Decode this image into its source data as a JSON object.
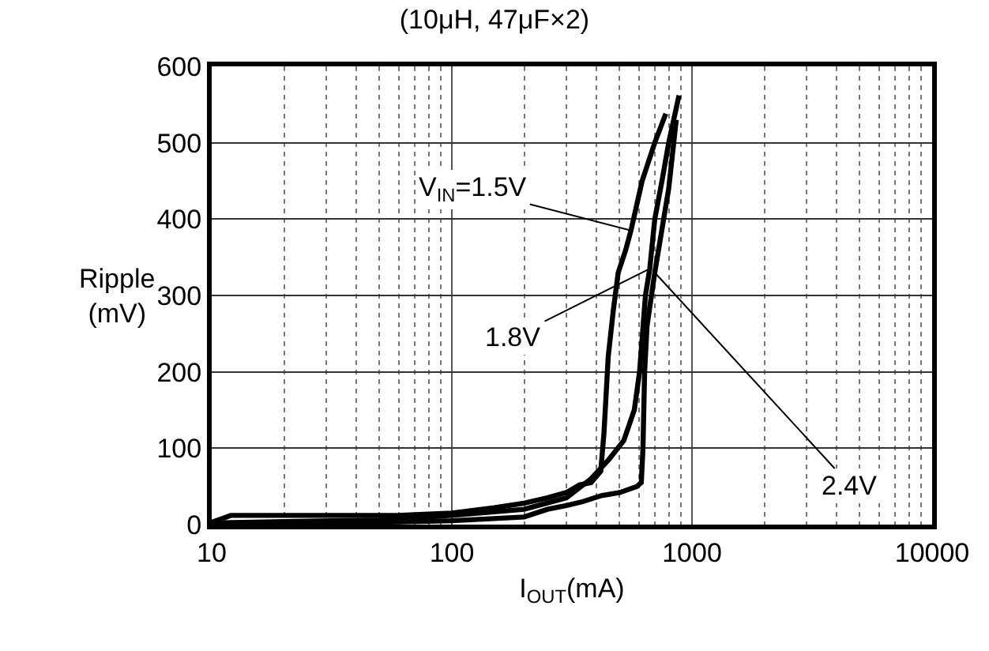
{
  "chart_data": {
    "type": "line",
    "title": "(10μH, 47μF×2)",
    "xlabel": "I$_{OUT}$(mA)",
    "ylabel": "Ripple\n(mV)",
    "log": "x",
    "xlim": [
      10,
      10000
    ],
    "xticks": [
      10,
      100,
      1000,
      10000
    ],
    "ylim": [
      0,
      600
    ],
    "yticks": [
      0,
      100,
      200,
      300,
      400,
      500,
      600
    ],
    "grid": true,
    "marker": "none",
    "line_style": "solid",
    "series": [
      {
        "color": "#000000",
        "x": [
          10,
          12,
          30,
          60,
          100,
          150,
          200,
          250,
          300,
          340,
          380,
          417,
          430,
          448,
          470,
          493,
          530,
          557,
          620,
          700,
          778
        ],
        "values": [
          3,
          12,
          12,
          12,
          15,
          22,
          28,
          35,
          42,
          52,
          55,
          70,
          120,
          220,
          280,
          330,
          360,
          385,
          450,
          500,
          538
        ]
      },
      {
        "color": "#000000",
        "x": [
          10,
          20,
          50,
          100,
          200,
          300,
          380,
          450,
          520,
          575,
          605,
          640,
          667,
          700,
          750,
          800,
          883
        ],
        "values": [
          2,
          4,
          6,
          12,
          20,
          35,
          60,
          85,
          110,
          150,
          200,
          300,
          335,
          400,
          450,
          500,
          562
        ]
      },
      {
        "color": "#000000",
        "x": [
          10,
          50,
          100,
          200,
          250,
          300,
          350,
          420,
          500,
          590,
          615,
          625,
          635,
          650,
          700,
          800,
          860
        ],
        "values": [
          1,
          3,
          5,
          10,
          20,
          25,
          30,
          38,
          42,
          50,
          55,
          100,
          200,
          260,
          330,
          440,
          530
        ]
      }
    ],
    "annotations": [
      {
        "text": "V$_{IN}$=1.5V",
        "x": 557,
        "y": 385
      },
      {
        "text": "1.8V",
        "x": 667,
        "y": 335
      },
      {
        "text": "2.4V",
        "x": 700,
        "y": 330
      }
    ]
  }
}
